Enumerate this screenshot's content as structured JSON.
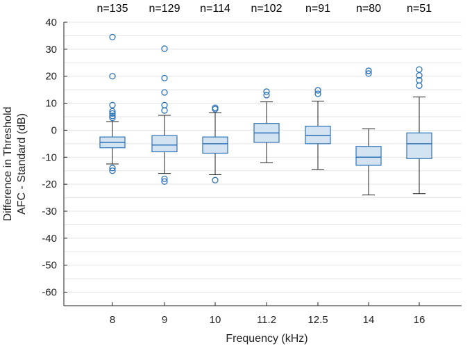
{
  "chart_data": {
    "type": "box",
    "title": "",
    "xlabel": "Frequency (kHz)",
    "ylabel_line1": "Difference in Threshold",
    "ylabel_line2": "AFC - Standard (dB)",
    "ylim": [
      -65,
      40
    ],
    "yticks": [
      40,
      30,
      20,
      10,
      0,
      -10,
      -20,
      -30,
      -40,
      -50,
      -60
    ],
    "ytick_labels": [
      "40",
      "30",
      "20",
      "10",
      "0",
      "-10",
      "-20",
      "-30",
      "-40",
      "-50",
      "-60"
    ],
    "grid": true,
    "categories": [
      "8",
      "9",
      "10",
      "11.2",
      "12.5",
      "14",
      "16"
    ],
    "n_labels": [
      "n=135",
      "n=129",
      "n=114",
      "n=102",
      "n=91",
      "n=80",
      "n=51"
    ],
    "boxes": [
      {
        "whisker_low": -12.5,
        "q1": -6.5,
        "median": -4.5,
        "q3": -2.5,
        "whisker_high": 3.2,
        "outliers": [
          34.5,
          20,
          9.3,
          7,
          6.2,
          5.3,
          4.6,
          -14,
          -15
        ]
      },
      {
        "whisker_low": -16,
        "q1": -8,
        "median": -5.5,
        "q3": -2,
        "whisker_high": 5.5,
        "outliers": [
          30.2,
          19.3,
          14,
          9.3,
          7.3,
          -18,
          -19
        ]
      },
      {
        "whisker_low": -16.5,
        "q1": -8.5,
        "median": -5,
        "q3": -2.5,
        "whisker_high": 6.5,
        "outliers": [
          8.3,
          7.8,
          -18.5
        ]
      },
      {
        "whisker_low": -12,
        "q1": -4.5,
        "median": -1,
        "q3": 2.5,
        "whisker_high": 10.5,
        "outliers": [
          14.3,
          13
        ]
      },
      {
        "whisker_low": -14.5,
        "q1": -5,
        "median": -2,
        "q3": 1.5,
        "whisker_high": 10.8,
        "outliers": [
          14.8,
          13.5
        ]
      },
      {
        "whisker_low": -24,
        "q1": -13,
        "median": -10,
        "q3": -6,
        "whisker_high": 0.5,
        "outliers": [
          22,
          21
        ]
      },
      {
        "whisker_low": -23.5,
        "q1": -10.5,
        "median": -5,
        "q3": -1,
        "whisker_high": 12.3,
        "outliers": [
          22.5,
          20.3,
          18.5,
          16.5
        ]
      }
    ],
    "colors": {
      "box_fill": "#d3e3f2",
      "box_edge": "#2b72b8",
      "median": "#2b72b8",
      "outlier": "#2b72b8",
      "whisker": "#222222",
      "grid": "#e3e3e3",
      "axis": "#222222"
    }
  }
}
